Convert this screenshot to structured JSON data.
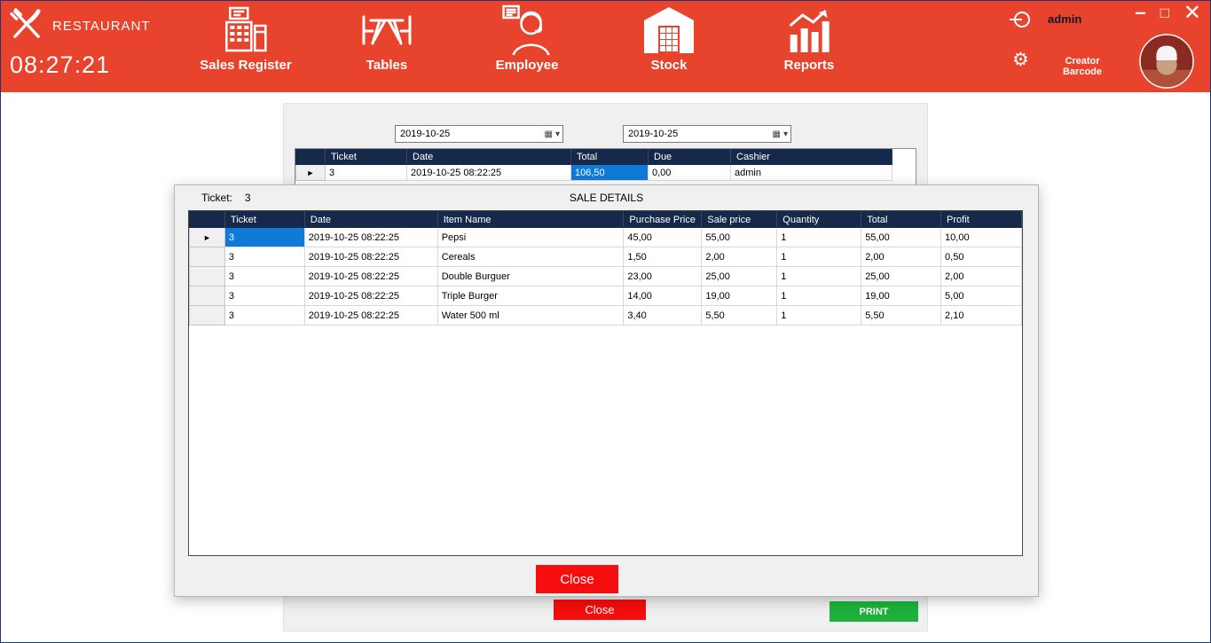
{
  "header": {
    "app_title": "RESTAURANT",
    "clock": "08:27:21",
    "nav": [
      {
        "label": "Sales Register"
      },
      {
        "label": "Tables"
      },
      {
        "label": "Employee"
      },
      {
        "label": "Stock"
      },
      {
        "label": "Reports"
      }
    ],
    "user": "admin",
    "creator_barcode": "Creator Barcode"
  },
  "icons": {
    "minimize": "–",
    "maximize": "□",
    "close": "✕",
    "gear": "⚙",
    "calendar": "▦",
    "dropdown": "▾",
    "row_selector": "►"
  },
  "sales_panel": {
    "date_from": "2019-10-25",
    "date_to": "2019-10-25",
    "grid": {
      "columns": [
        "Ticket",
        "Date",
        "Total",
        "Due",
        "Cashier"
      ],
      "rows": [
        [
          "3",
          "2019-10-25 08:22:25",
          "106,50",
          "0,00",
          "admin"
        ]
      ]
    },
    "close_label": "Close",
    "print_label": "PRINT"
  },
  "sale_details": {
    "ticket_label": "Ticket:",
    "ticket_value": "3",
    "title": "SALE DETAILS",
    "grid": {
      "columns": [
        "Ticket",
        "Date",
        "Item Name",
        "Purchase Price",
        "Sale price",
        "Quantity",
        "Total",
        "Profit"
      ],
      "rows": [
        [
          "3",
          "2019-10-25 08:22:25",
          "Pepsi",
          "45,00",
          "55,00",
          "1",
          "55,00",
          "10,00"
        ],
        [
          "3",
          "2019-10-25 08:22:25",
          "Cereals",
          "1,50",
          "2,00",
          "1",
          "2,00",
          "0,50"
        ],
        [
          "3",
          "2019-10-25 08:22:25",
          "Double Burguer",
          "23,00",
          "25,00",
          "1",
          "25,00",
          "2,00"
        ],
        [
          "3",
          "2019-10-25 08:22:25",
          "Triple Burger",
          "14,00",
          "19,00",
          "1",
          "19,00",
          "5,00"
        ],
        [
          "3",
          "2019-10-25 08:22:25",
          "Water 500 ml",
          "3,40",
          "5,50",
          "1",
          "5,50",
          "2,10"
        ]
      ]
    },
    "close_label": "Close"
  },
  "colors": {
    "header_bg": "#E8432D",
    "grid_header_bg": "#16294B",
    "selection_blue": "#0F7AD8",
    "close_button_red": "#F60D0D",
    "print_button_green": "#1CB23B"
  }
}
